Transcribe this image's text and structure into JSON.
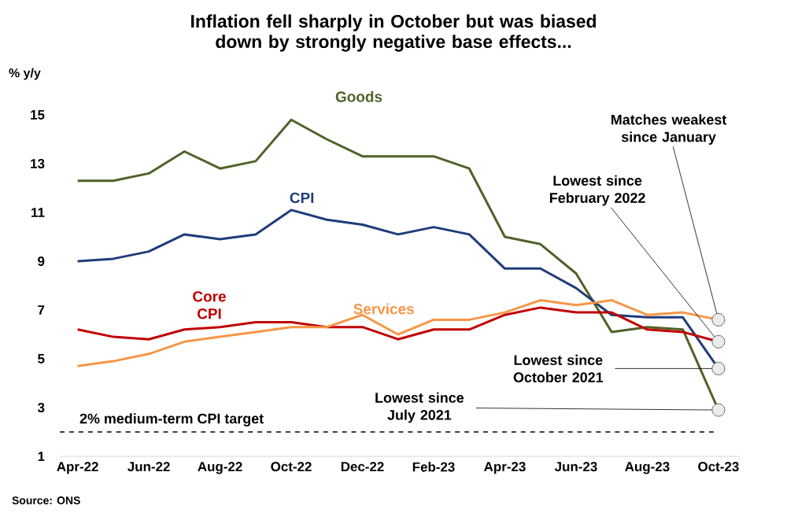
{
  "chart_data": {
    "type": "line",
    "title": "Inflation fell sharply in October but was biased down by strongly negative base effects...",
    "ylabel": "% y/y",
    "categories": [
      "Apr-22",
      null,
      "Jun-22",
      null,
      "Aug-22",
      null,
      "Oct-22",
      null,
      "Dec-22",
      null,
      "Feb-23",
      null,
      "Apr-23",
      null,
      "Jun-23",
      null,
      "Aug-23",
      null,
      "Oct-23"
    ],
    "series": [
      {
        "name": "Goods",
        "color": "#4f6228",
        "values": [
          12.3,
          12.3,
          12.6,
          13.5,
          12.8,
          13.1,
          14.8,
          14.0,
          13.3,
          13.3,
          13.3,
          12.8,
          10.0,
          9.7,
          8.5,
          6.1,
          6.3,
          6.2,
          2.9
        ]
      },
      {
        "name": "CPI",
        "color": "#1f3c7a",
        "values": [
          9.0,
          9.1,
          9.4,
          10.1,
          9.9,
          10.1,
          11.1,
          10.7,
          10.5,
          10.1,
          10.4,
          10.1,
          8.7,
          8.7,
          7.9,
          6.8,
          6.7,
          6.7,
          4.6
        ]
      },
      {
        "name": "Core CPI",
        "color": "#c00000",
        "values": [
          6.2,
          5.9,
          5.8,
          6.2,
          6.3,
          6.5,
          6.5,
          6.3,
          6.3,
          5.8,
          6.2,
          6.2,
          6.8,
          7.1,
          6.9,
          6.9,
          6.2,
          6.1,
          5.7
        ]
      },
      {
        "name": "Services",
        "color": "#f79646",
        "values": [
          4.7,
          4.9,
          5.2,
          5.7,
          5.9,
          6.1,
          6.3,
          6.3,
          6.8,
          6.0,
          6.6,
          6.6,
          6.9,
          7.4,
          7.2,
          7.4,
          6.8,
          6.9,
          6.6
        ]
      }
    ],
    "ylim": [
      1,
      15
    ],
    "yticks": [
      1,
      3,
      5,
      7,
      9,
      11,
      13,
      15
    ],
    "grid": false,
    "marker": "none",
    "line_style": "solid",
    "ref_lines": [
      {
        "axis": "y",
        "value": 2,
        "label": "2% medium-term CPI target",
        "line_style": "dashed",
        "color": "#404040"
      }
    ],
    "annotations": [
      {
        "text": "Matches weakest since January",
        "x": "Oct-23",
        "y": 6.6
      },
      {
        "text": "Lowest since February 2022",
        "x": "Oct-23",
        "y": 5.7
      },
      {
        "text": "Lowest since October 2021",
        "x": "Oct-23",
        "y": 4.6
      },
      {
        "text": "Lowest since July 2021",
        "x": "Oct-23",
        "y": 2.9
      },
      "Source: ONS"
    ]
  }
}
